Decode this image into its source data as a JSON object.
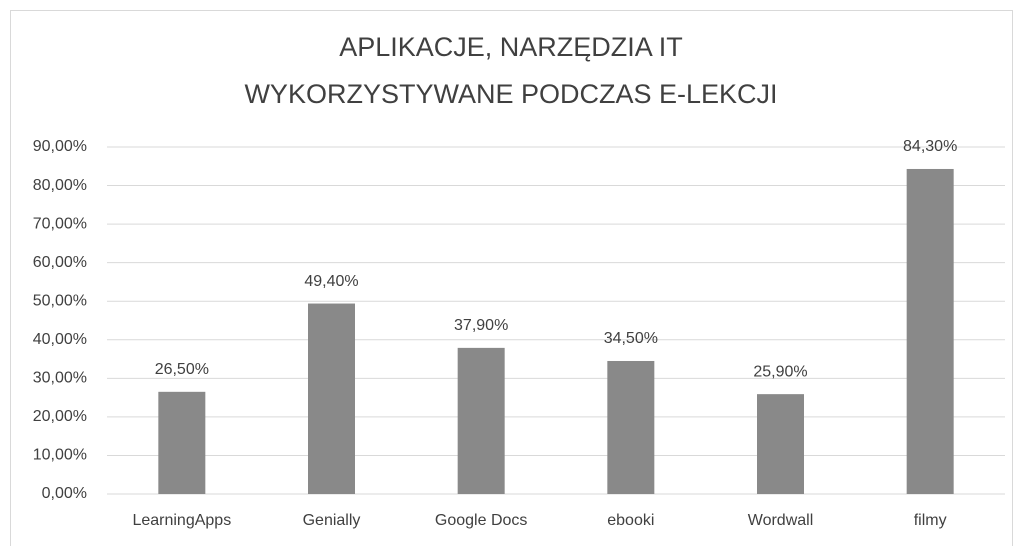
{
  "chart_data": {
    "type": "bar",
    "title": [
      "APLIKACJE, NARZĘDZIA IT",
      "WYKORZYSTYWANE PODCZAS E-LEKCJI"
    ],
    "categories": [
      "LearningApps",
      "Genially",
      "Google Docs",
      "ebooki",
      "Wordwall",
      "filmy"
    ],
    "values": [
      26.5,
      49.4,
      37.9,
      34.5,
      25.9,
      84.3
    ],
    "value_labels": [
      "26,50%",
      "49,40%",
      "37,90%",
      "34,50%",
      "25,90%",
      "84,30%"
    ],
    "color": "#898989",
    "ylim": [
      0,
      90
    ],
    "yticks": [
      {
        "value": 0,
        "label": "0,00%"
      },
      {
        "value": 10,
        "label": "10,00%"
      },
      {
        "value": 20,
        "label": "20,00%"
      },
      {
        "value": 30,
        "label": "30,00%"
      },
      {
        "value": 40,
        "label": "40,00%"
      },
      {
        "value": 50,
        "label": "50,00%"
      },
      {
        "value": 60,
        "label": "60,00%"
      },
      {
        "value": 70,
        "label": "70,00%"
      },
      {
        "value": 80,
        "label": "80,00%"
      },
      {
        "value": 90,
        "label": "90,00%"
      }
    ],
    "grid": true
  }
}
